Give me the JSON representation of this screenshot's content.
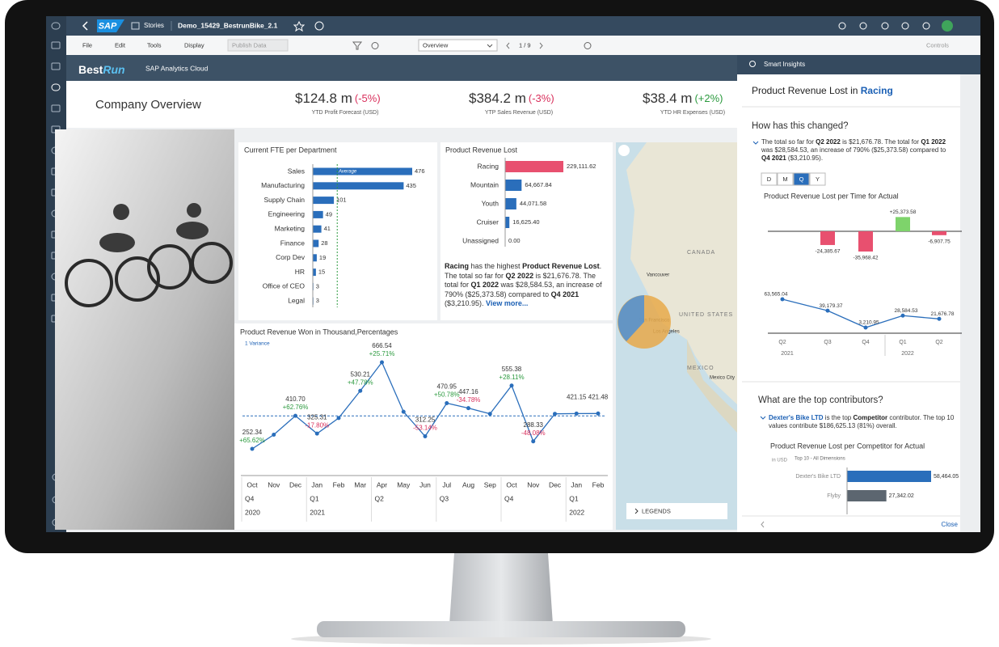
{
  "top_bar": {
    "logo": "SAP",
    "breadcrumb": "Stories",
    "story_name": "Demo_15429_BestrunBike_2.1"
  },
  "toolbar": {
    "menus": [
      "File",
      "Edit",
      "Tools",
      "Display"
    ],
    "publish": "Publish Data",
    "page_select": "Overview",
    "page_count": "1 / 9",
    "controls": "Controls"
  },
  "banner": {
    "brand_prefix": "Best",
    "brand_suffix": "Run",
    "product": "SAP Analytics Cloud"
  },
  "header": {
    "title": "Company Overview",
    "kpis": [
      {
        "value": "$124.8 m",
        "change": "(-5%)",
        "trend": "down",
        "label": "YTD Profit Forecast (USD)"
      },
      {
        "value": "$384.2 m",
        "change": "(-3%)",
        "trend": "down",
        "label": "YTP Sales Revenue (USD)"
      },
      {
        "value": "$38.4 m",
        "change": "(+2%)",
        "trend": "up",
        "label": "YTD HR Expenses (USD)"
      }
    ]
  },
  "fte_chart": {
    "type": "bar",
    "title": "Current FTE per Department",
    "categories": [
      "Sales",
      "Manufacturing",
      "Supply Chain",
      "Engineering",
      "Marketing",
      "Finance",
      "Corp Dev",
      "HR",
      "Office of CEO",
      "Legal"
    ],
    "values": [
      476,
      435,
      101,
      49,
      41,
      28,
      19,
      15,
      3,
      3
    ],
    "color": "#2a6ebb",
    "average": 117,
    "average_label": "Average"
  },
  "revenue_lost_chart": {
    "type": "bar",
    "title": "Product Revenue Lost",
    "categories": [
      "Racing",
      "Mountain",
      "Youth",
      "Cruiser",
      "Unassigned"
    ],
    "values": [
      229111.62,
      64667.84,
      44071.58,
      16625.4,
      0
    ],
    "value_labels": [
      "229,111.62",
      "64,667.84",
      "44,071.58",
      "16,625.40",
      "0.00"
    ],
    "colors": [
      "#e8506f",
      "#2a6ebb",
      "#2a6ebb",
      "#2a6ebb",
      "#2a6ebb"
    ]
  },
  "insight": {
    "parts": [
      {
        "text": "Racing",
        "style": "bold"
      },
      {
        "text": " has the highest "
      },
      {
        "text": "Product Revenue Lost",
        "style": "bold"
      },
      {
        "text": ". The total so far for "
      },
      {
        "text": "Q2 2022",
        "style": "bold"
      },
      {
        "text": " is $21,676.78. The total for "
      },
      {
        "text": "Q1 2022",
        "style": "bold"
      },
      {
        "text": " was $28,584.53, an increase of 790% ($25,373.58) compared to "
      },
      {
        "text": "Q4 2021",
        "style": "bold"
      },
      {
        "text": " ($3,210.95). "
      },
      {
        "text": "View more...",
        "style": "link"
      }
    ]
  },
  "revenue_won_chart": {
    "type": "line",
    "title": "Product Revenue Won in Thousand,Percentages",
    "variance_label": "1 Variance",
    "categories": [
      "Oct",
      "Nov",
      "Dec",
      "Jan",
      "Feb",
      "Mar",
      "Apr",
      "May",
      "Jun",
      "Jul",
      "Aug",
      "Sep",
      "Oct",
      "Nov",
      "Dec",
      "Jan",
      "Feb"
    ],
    "quarters": [
      "Q4",
      null,
      null,
      "Q1",
      null,
      null,
      "Q2",
      null,
      null,
      "Q3",
      null,
      null,
      "Q4",
      null,
      null,
      "Q1",
      null
    ],
    "years": [
      "2020",
      null,
      null,
      "2021",
      null,
      null,
      null,
      null,
      null,
      null,
      null,
      null,
      null,
      null,
      null,
      "2022",
      null
    ],
    "values": [
      252.34,
      320,
      410.7,
      325.31,
      400,
      530.21,
      666.54,
      430,
      312.25,
      470.95,
      447.16,
      420,
      555.38,
      288.33,
      420,
      421.15,
      421.48
    ],
    "value_labels": [
      "252.34",
      null,
      "410.70",
      "325.31",
      null,
      "530.21",
      "666.54",
      null,
      "312.25",
      "470.95",
      "447.16",
      null,
      "555.38",
      "288.33",
      null,
      "421.15",
      "421.48"
    ],
    "change_labels": [
      "+65.62%",
      null,
      "+62.76%",
      "-17.80%",
      null,
      "+47.78%",
      "+25.71%",
      null,
      "-53.14%",
      "+50.78%",
      "-34.78%",
      null,
      "+28.11%",
      "-48.08%",
      null,
      null,
      null
    ],
    "reference_line": 410,
    "color": "#2a6ebb",
    "positive_color": "#2b9a3e",
    "negative_color": "#d9305c"
  },
  "map": {
    "labels": [
      "CANADA",
      "UNITED STATES",
      "MEXICO",
      "Vancouver",
      "San Francisco",
      "Los Angeles",
      "Mexico City"
    ],
    "legends": "LEGENDS"
  },
  "smart_insights": {
    "panel_title": "Smart Insights",
    "title_prefix": "Product Revenue Lost in",
    "title_highlight": "Racing",
    "change_question": "How has this changed?",
    "change_parts": [
      {
        "text": "The total so far for "
      },
      {
        "text": "Q2 2022",
        "style": "bold"
      },
      {
        "text": " is $21,676.78. The total for "
      },
      {
        "text": "Q1 2022",
        "style": "bold"
      },
      {
        "text": " was $28,584.53, an increase of 790% ($25,373.58) compared to "
      },
      {
        "text": "Q4 2021",
        "style": "bold"
      },
      {
        "text": " ($3,210.95)."
      }
    ],
    "periods": [
      "D",
      "M",
      "Q",
      "Y"
    ],
    "selected_period": "Q",
    "time_chart": {
      "type": "line",
      "title": "Product Revenue Lost per Time for Actual",
      "categories": [
        "Q2",
        "Q3",
        "Q4",
        "Q1",
        "Q2"
      ],
      "years": [
        "2021",
        null,
        null,
        "2022",
        null
      ],
      "values": [
        63565.04,
        39179.37,
        3210.95,
        28584.53,
        21676.78
      ],
      "value_labels": [
        "63,565.04",
        "39,179.37",
        "3,210.95",
        "28,584.53",
        "21,676.78"
      ],
      "variances": [
        -24385.67,
        -35968.42,
        25373.58,
        -6907.75
      ],
      "variance_labels": [
        "-24,385.67",
        "-35,968.42",
        "+25,373.58",
        "-6,907.75"
      ],
      "color": "#2a6ebb",
      "positive_color": "#7ed36b",
      "negative_color": "#e8506f"
    },
    "contributors_question": "What are the top contributors?",
    "contributors_parts": [
      {
        "text": "Dexter's Bike LTD",
        "style": "link"
      },
      {
        "text": " is the top "
      },
      {
        "text": "Competitor",
        "style": "bold"
      },
      {
        "text": " contributor. The top 10 values contribute $186,625.13 (81%) overall."
      }
    ],
    "competitor_chart": {
      "type": "bar",
      "title": "Product Revenue Lost per Competitor for Actual",
      "unit": "in USD",
      "filter": "Top 10 - All Dimensions",
      "categories": [
        "Dexter's Bike LTD",
        "Flyby"
      ],
      "values": [
        58464.05,
        27342.02
      ],
      "value_labels": [
        "58,464.05",
        "27,342.02"
      ],
      "colors": [
        "#2a6ebb",
        "#5c6670"
      ]
    },
    "close": "Close"
  }
}
